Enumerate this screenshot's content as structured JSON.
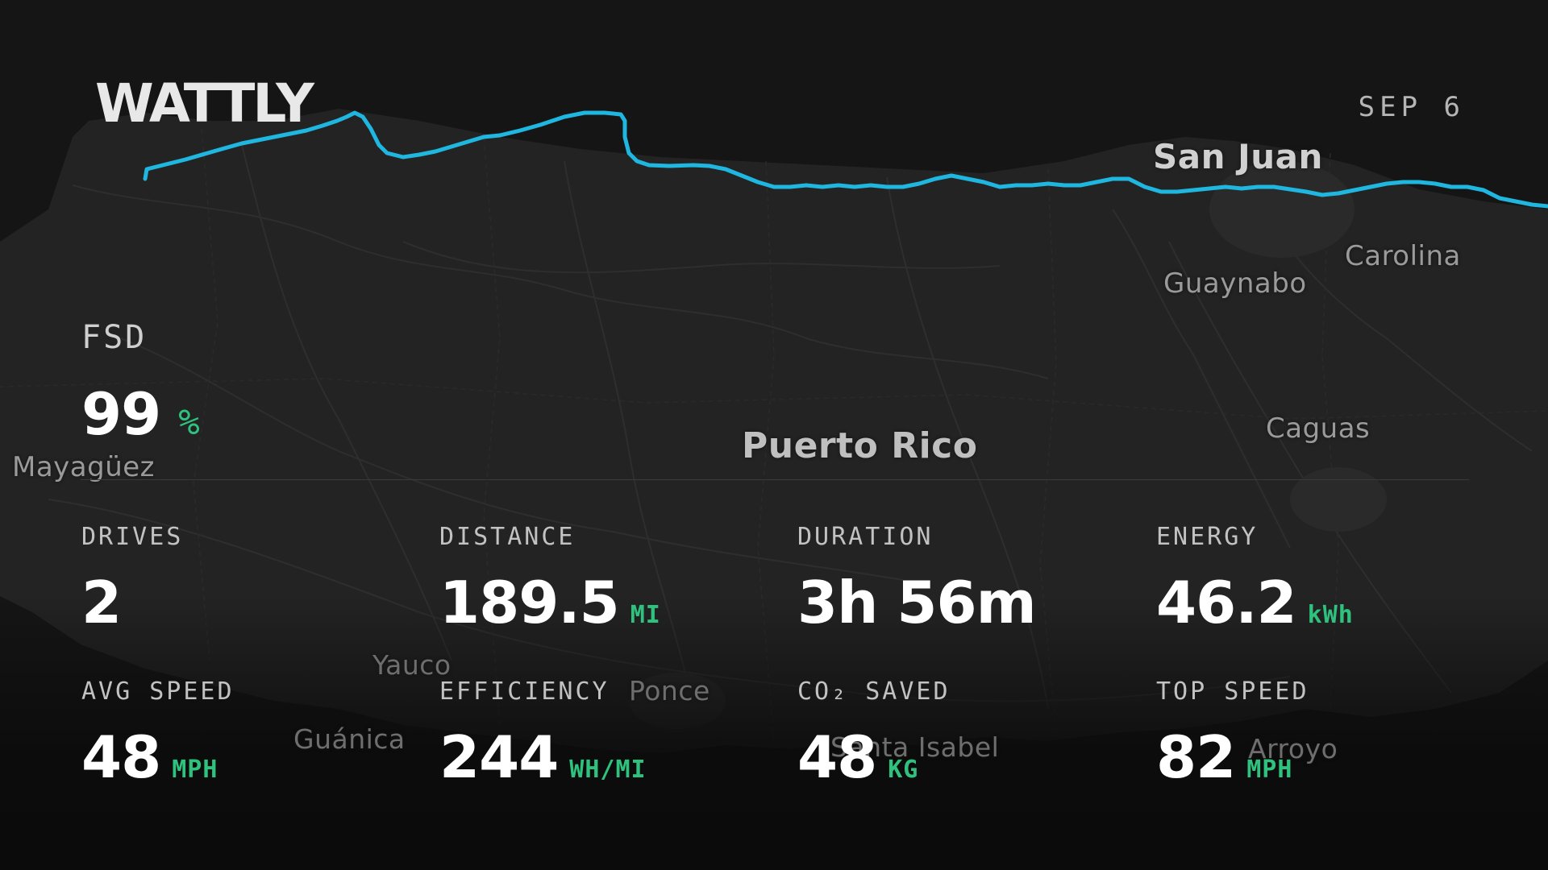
{
  "brand": "WATTLY",
  "date": "SEP 6",
  "fsd": {
    "label": "FSD",
    "value": "99",
    "unit": "%"
  },
  "places": {
    "san_juan": "San Juan",
    "carolina": "Carolina",
    "guaynabo": "Guaynabo",
    "caguas": "Caguas",
    "puerto_rico": "Puerto Rico",
    "mayaguez": "Mayagüez",
    "yauco": "Yauco",
    "ponce": "Ponce",
    "guanica": "Guánica",
    "santa_isabel": "Santa Isabel",
    "arroyo": "Arroyo"
  },
  "stats": {
    "drives": {
      "label": "DRIVES",
      "value": "2",
      "unit": ""
    },
    "distance": {
      "label": "DISTANCE",
      "value": "189.5",
      "unit": "MI"
    },
    "duration": {
      "label": "DURATION",
      "value": "3h 56m",
      "unit": ""
    },
    "energy": {
      "label": "ENERGY",
      "value": "46.2",
      "unit": "kWh"
    },
    "avg_speed": {
      "label": "AVG SPEED",
      "value": "48",
      "unit": "MPH"
    },
    "efficiency": {
      "label": "EFFICIENCY",
      "value": "244",
      "unit": "WH/MI"
    },
    "co2_saved": {
      "label": "CO₂ SAVED",
      "value": "48",
      "unit": "KG"
    },
    "top_speed": {
      "label": "TOP SPEED",
      "value": "82",
      "unit": "MPH"
    }
  },
  "colors": {
    "route": "#1fb6e0",
    "accent_unit": "#2ec27e",
    "background": "#161616",
    "land": "#232323"
  }
}
